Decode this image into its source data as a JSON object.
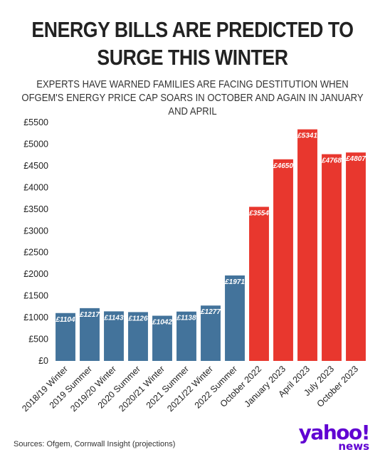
{
  "title": "ENERGY BILLS ARE PREDICTED TO SURGE THIS WINTER",
  "subtitle": "EXPERTS HAVE WARNED FAMILIES ARE FACING DESTITUTION WHEN OFGEM'S ENERGY PRICE CAP SOARS IN OCTOBER AND AGAIN IN JANUARY AND APRIL",
  "source": "Sources: Ofgem, Cornwall Insight (projections)",
  "logo": {
    "main": "yahoo!",
    "sub": "news"
  },
  "colors": {
    "historical": "#43739b",
    "projected": "#e8372e",
    "label_text": "#ffffff"
  },
  "chart_data": {
    "type": "bar",
    "categories": [
      "2018/19 Winter",
      "2019 Summer",
      "2019/20 Winter",
      "2020 Summer",
      "2020/21 Winter",
      "2021 Summer",
      "2021/22 Winter",
      "2022 Summer",
      "October 2022",
      "January 2023",
      "April 2023",
      "July 2023",
      "October 2023"
    ],
    "values": [
      1104,
      1217,
      1143,
      1126,
      1042,
      1138,
      1277,
      1971,
      3554,
      4650,
      5341,
      4768,
      4807
    ],
    "value_labels": [
      "£1104",
      "£1217",
      "£1143",
      "£1126",
      "£1042",
      "£1138",
      "£1277",
      "£1971",
      "£3554",
      "£4650",
      "£5341",
      "£4768",
      "£4807"
    ],
    "projected": [
      false,
      false,
      false,
      false,
      false,
      false,
      false,
      false,
      true,
      true,
      true,
      true,
      true
    ],
    "yticks": [
      0,
      500,
      1000,
      1500,
      2000,
      2500,
      3000,
      3500,
      4000,
      4500,
      5000,
      5500
    ],
    "ytick_labels": [
      "£0",
      "£500",
      "£1000",
      "£1500",
      "£2000",
      "£2500",
      "£3000",
      "£3500",
      "£4000",
      "£4500",
      "£5000",
      "£5500"
    ],
    "ylim": [
      0,
      5500
    ],
    "xlabel": "",
    "ylabel": "",
    "grid": false
  }
}
